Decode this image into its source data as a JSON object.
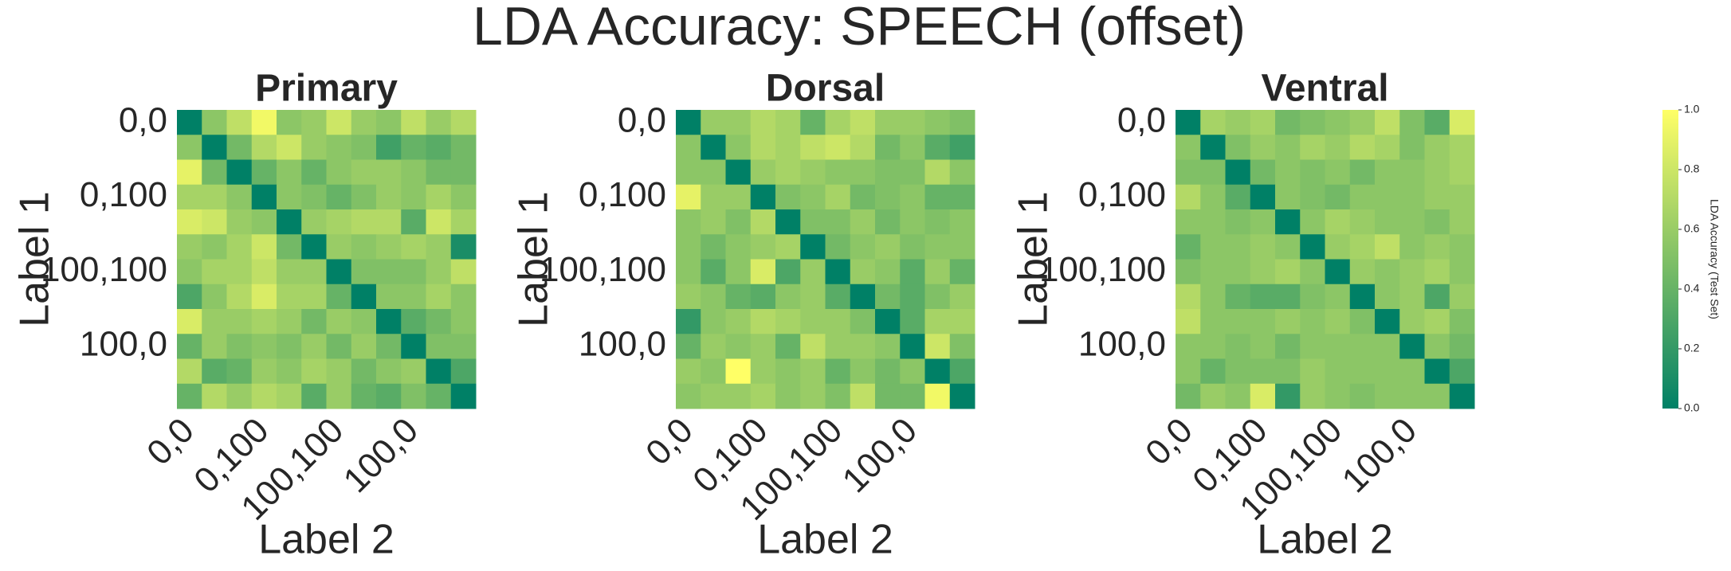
{
  "title": "LDA Accuracy: SPEECH (offset)",
  "colorbar": {
    "label": "LDA Accuracy (Test Set)",
    "colormap": "summer",
    "lim": [
      0,
      1
    ],
    "ticks": [
      {
        "value": 0,
        "label": "0.0"
      },
      {
        "value": 0.2,
        "label": "0.2"
      },
      {
        "value": 0.4,
        "label": "0.4"
      },
      {
        "value": 0.6,
        "label": "0.6"
      },
      {
        "value": 0.8,
        "label": "0.8"
      },
      {
        "value": 1,
        "label": "1.0"
      }
    ]
  },
  "chart_data": [
    {
      "type": "heatmap",
      "title": "Primary",
      "xlabel": "Label 2",
      "ylabel": "Label 1",
      "x_categories": [
        "0,0",
        null,
        null,
        "0,100",
        null,
        null,
        "100,100",
        null,
        null,
        "100,0",
        null,
        null
      ],
      "y_categories": [
        "0,0",
        null,
        null,
        "0,100",
        null,
        null,
        "100,100",
        null,
        null,
        "100,0",
        null,
        null
      ],
      "values": [
        [
          0,
          0.55,
          0.75,
          0.95,
          0.55,
          0.6,
          0.8,
          0.6,
          0.55,
          0.75,
          0.6,
          0.7
        ],
        [
          0.55,
          0,
          0.45,
          0.7,
          0.8,
          0.6,
          0.55,
          0.5,
          0.25,
          0.4,
          0.35,
          0.45
        ],
        [
          0.9,
          0.45,
          0,
          0.4,
          0.55,
          0.4,
          0.55,
          0.6,
          0.6,
          0.55,
          0.45,
          0.45
        ],
        [
          0.65,
          0.65,
          0.55,
          0,
          0.55,
          0.5,
          0.4,
          0.5,
          0.6,
          0.55,
          0.65,
          0.55
        ],
        [
          0.85,
          0.8,
          0.6,
          0.55,
          0,
          0.6,
          0.65,
          0.7,
          0.7,
          0.35,
          0.8,
          0.65
        ],
        [
          0.6,
          0.55,
          0.65,
          0.8,
          0.45,
          0,
          0.6,
          0.55,
          0.6,
          0.65,
          0.6,
          0.1
        ],
        [
          0.55,
          0.65,
          0.65,
          0.75,
          0.6,
          0.6,
          0,
          0.5,
          0.5,
          0.5,
          0.6,
          0.75
        ],
        [
          0.3,
          0.55,
          0.7,
          0.85,
          0.65,
          0.65,
          0.4,
          0,
          0.55,
          0.55,
          0.65,
          0.55
        ],
        [
          0.85,
          0.6,
          0.6,
          0.65,
          0.6,
          0.45,
          0.6,
          0.55,
          0,
          0.35,
          0.45,
          0.55
        ],
        [
          0.4,
          0.6,
          0.5,
          0.55,
          0.5,
          0.6,
          0.45,
          0.6,
          0.45,
          0,
          0.5,
          0.5
        ],
        [
          0.7,
          0.35,
          0.4,
          0.6,
          0.55,
          0.65,
          0.6,
          0.45,
          0.55,
          0.6,
          0,
          0.3
        ],
        [
          0.4,
          0.7,
          0.6,
          0.7,
          0.65,
          0.35,
          0.6,
          0.4,
          0.35,
          0.5,
          0.4,
          0
        ]
      ]
    },
    {
      "type": "heatmap",
      "title": "Dorsal",
      "xlabel": "Label 2",
      "ylabel": "Label 1",
      "x_categories": [
        "0,0",
        null,
        null,
        "0,100",
        null,
        null,
        "100,100",
        null,
        null,
        "100,0",
        null,
        null
      ],
      "y_categories": [
        "0,0",
        null,
        null,
        "0,100",
        null,
        null,
        "100,100",
        null,
        null,
        "100,0",
        null,
        null
      ],
      "values": [
        [
          0,
          0.6,
          0.6,
          0.7,
          0.65,
          0.4,
          0.65,
          0.75,
          0.6,
          0.6,
          0.55,
          0.5
        ],
        [
          0.55,
          0,
          0.55,
          0.7,
          0.65,
          0.75,
          0.8,
          0.7,
          0.45,
          0.55,
          0.35,
          0.25
        ],
        [
          0.55,
          0.55,
          0,
          0.6,
          0.65,
          0.6,
          0.55,
          0.55,
          0.5,
          0.5,
          0.7,
          0.55
        ],
        [
          0.9,
          0.6,
          0.6,
          0,
          0.5,
          0.55,
          0.65,
          0.45,
          0.5,
          0.55,
          0.4,
          0.4
        ],
        [
          0.55,
          0.6,
          0.5,
          0.7,
          0,
          0.5,
          0.5,
          0.6,
          0.45,
          0.55,
          0.5,
          0.55
        ],
        [
          0.55,
          0.45,
          0.55,
          0.6,
          0.65,
          0,
          0.45,
          0.55,
          0.6,
          0.5,
          0.55,
          0.55
        ],
        [
          0.55,
          0.35,
          0.55,
          0.85,
          0.3,
          0.6,
          0,
          0.6,
          0.55,
          0.35,
          0.6,
          0.4
        ],
        [
          0.6,
          0.55,
          0.4,
          0.35,
          0.55,
          0.6,
          0.35,
          0,
          0.45,
          0.35,
          0.5,
          0.6
        ],
        [
          0.2,
          0.55,
          0.6,
          0.7,
          0.65,
          0.6,
          0.6,
          0.5,
          0,
          0.35,
          0.65,
          0.65
        ],
        [
          0.4,
          0.6,
          0.55,
          0.6,
          0.4,
          0.75,
          0.6,
          0.6,
          0.55,
          0,
          0.8,
          0.5
        ],
        [
          0.6,
          0.55,
          1.0,
          0.6,
          0.55,
          0.6,
          0.4,
          0.55,
          0.45,
          0.55,
          0,
          0.3
        ],
        [
          0.55,
          0.6,
          0.6,
          0.65,
          0.55,
          0.6,
          0.5,
          0.75,
          0.45,
          0.45,
          0.95,
          0
        ]
      ]
    },
    {
      "type": "heatmap",
      "title": "Ventral",
      "xlabel": "Label 2",
      "ylabel": "Label 1",
      "x_categories": [
        "0,0",
        null,
        null,
        "0,100",
        null,
        null,
        "100,100",
        null,
        null,
        "100,0",
        null,
        null
      ],
      "y_categories": [
        "0,0",
        null,
        null,
        "0,100",
        null,
        null,
        "100,100",
        null,
        null,
        "100,0",
        null,
        null
      ],
      "values": [
        [
          0,
          0.65,
          0.6,
          0.65,
          0.45,
          0.5,
          0.55,
          0.6,
          0.75,
          0.5,
          0.35,
          0.85
        ],
        [
          0.55,
          0,
          0.5,
          0.6,
          0.55,
          0.65,
          0.6,
          0.7,
          0.65,
          0.5,
          0.6,
          0.65
        ],
        [
          0.5,
          0.5,
          0,
          0.45,
          0.55,
          0.5,
          0.55,
          0.45,
          0.55,
          0.55,
          0.6,
          0.65
        ],
        [
          0.7,
          0.55,
          0.35,
          0,
          0.55,
          0.5,
          0.45,
          0.55,
          0.55,
          0.55,
          0.6,
          0.6
        ],
        [
          0.55,
          0.55,
          0.5,
          0.55,
          0,
          0.55,
          0.65,
          0.6,
          0.55,
          0.55,
          0.5,
          0.6
        ],
        [
          0.4,
          0.55,
          0.55,
          0.6,
          0.55,
          0,
          0.6,
          0.65,
          0.75,
          0.55,
          0.6,
          0.55
        ],
        [
          0.5,
          0.55,
          0.55,
          0.6,
          0.65,
          0.55,
          0,
          0.6,
          0.55,
          0.6,
          0.65,
          0.55
        ],
        [
          0.7,
          0.55,
          0.4,
          0.35,
          0.35,
          0.5,
          0.55,
          0,
          0.55,
          0.6,
          0.3,
          0.6
        ],
        [
          0.75,
          0.55,
          0.55,
          0.55,
          0.6,
          0.55,
          0.6,
          0.5,
          0,
          0.6,
          0.65,
          0.5
        ],
        [
          0.55,
          0.55,
          0.5,
          0.55,
          0.45,
          0.55,
          0.55,
          0.55,
          0.55,
          0,
          0.55,
          0.45
        ],
        [
          0.55,
          0.4,
          0.5,
          0.5,
          0.5,
          0.6,
          0.55,
          0.55,
          0.55,
          0.55,
          0,
          0.3
        ],
        [
          0.45,
          0.6,
          0.55,
          0.85,
          0.2,
          0.6,
          0.55,
          0.5,
          0.55,
          0.55,
          0.55,
          0
        ]
      ]
    }
  ]
}
